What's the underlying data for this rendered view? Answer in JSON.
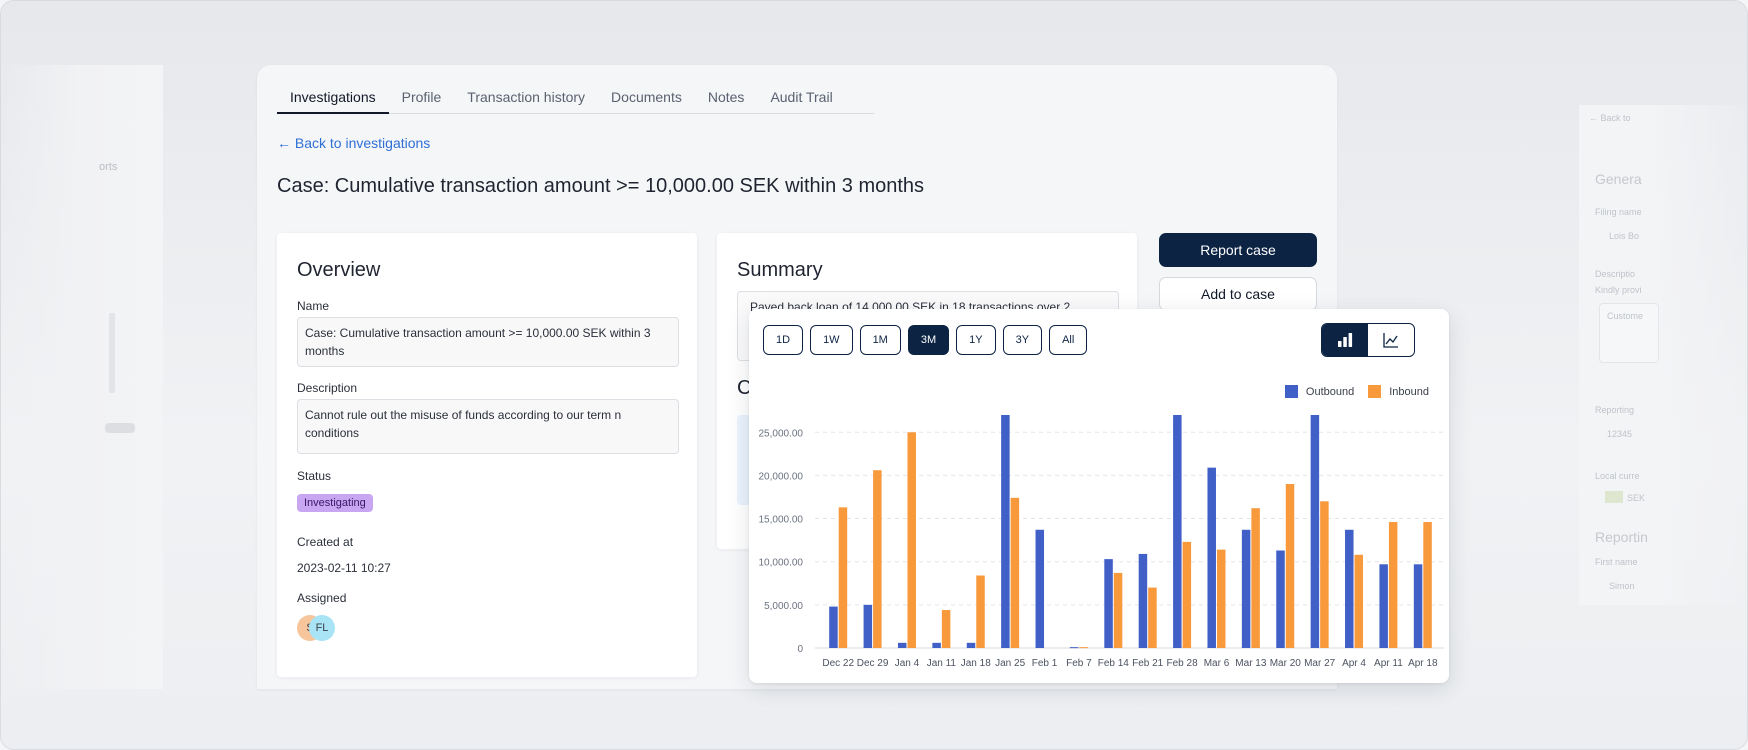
{
  "tabs": [
    "Investigations",
    "Profile",
    "Transaction history",
    "Documents",
    "Notes",
    "Audit Trail"
  ],
  "back_link": "← Back to investigations",
  "page_title": "Case: Cumulative transaction amount  >= 10,000.00 SEK within 3 months",
  "overview": {
    "title": "Overview",
    "name_label": "Name",
    "name_value": "Case: Cumulative transaction amount  >= 10,000.00 SEK within 3 months",
    "description_label": "Description",
    "description_value": "Cannot rule out the misuse of funds according to our term n conditions",
    "status_label": "Status",
    "status_value": "Investigating",
    "created_label": "Created at",
    "created_value": "2023-02-11 10:27",
    "assigned_label": "Assigned",
    "avatars": [
      "S",
      "FL"
    ]
  },
  "summary": {
    "title": "Summary",
    "text": "Payed back loan of 14,000.00 SEK in 18 transactions over 2",
    "partial_heading": "C"
  },
  "actions": {
    "report": "Report case",
    "add": "Add to case"
  },
  "ghost_left": {
    "text": "orts"
  },
  "ghost_right": {
    "back": "← Back to",
    "general": "Genera",
    "filing": "Filing name",
    "filing_value": "Lois Bo",
    "description": "Descriptio",
    "kindly": "Kindly provi",
    "customer": "Custome",
    "reporting": "Reporting",
    "reporting_value": "12345",
    "local": "Local curre",
    "currency_value": "SEK",
    "reportin_heading": "Reportin",
    "first_name": "First name",
    "first_value": "Simon"
  },
  "chart_controls": {
    "ranges": [
      "1D",
      "1W",
      "1M",
      "3M",
      "1Y",
      "3Y",
      "All"
    ],
    "active_range": "3M",
    "view_toggle": [
      "bar-chart-icon",
      "line-chart-icon"
    ],
    "active_view": "bar-chart-icon"
  },
  "colors": {
    "outbound": "#4060c8",
    "inbound": "#f8993c",
    "navy": "#0c2344"
  },
  "chart_data": {
    "type": "bar",
    "categories": [
      "Dec 22",
      "Dec 29",
      "Jan 4",
      "Jan 11",
      "Jan 18",
      "Jan 25",
      "Feb 1",
      "Feb 7",
      "Feb 14",
      "Feb 21",
      "Feb 28",
      "Mar 6",
      "Mar 13",
      "Mar 20",
      "Mar 27",
      "Apr 4",
      "Apr 11",
      "Apr 18"
    ],
    "series": [
      {
        "name": "Outbound",
        "values": [
          4800,
          5000,
          600,
          600,
          600,
          27000,
          13700,
          100,
          10300,
          10900,
          27000,
          20900,
          13700,
          11300,
          27000,
          13700,
          9700,
          9700
        ]
      },
      {
        "name": "Inbound",
        "values": [
          16300,
          20600,
          25000,
          4400,
          8400,
          17400,
          0,
          100,
          8700,
          7000,
          12300,
          11400,
          16200,
          19000,
          17000,
          10800,
          14600,
          14600
        ]
      }
    ],
    "y_ticks": [
      "0",
      "5,000.00",
      "10,000.00",
      "15,000.00",
      "20,000.00",
      "25,000.00"
    ],
    "ylim": [
      0,
      27000
    ],
    "legend_position": "top-right",
    "grid": true
  }
}
